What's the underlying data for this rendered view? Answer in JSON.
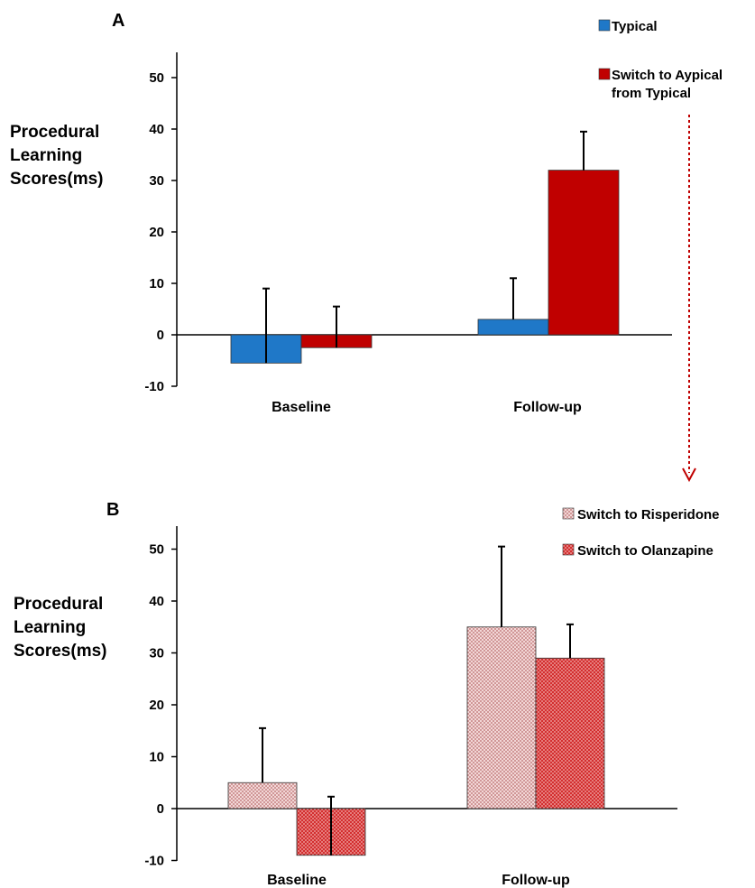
{
  "chart_data": [
    {
      "type": "bar",
      "panel": "A",
      "ylabel_lines": [
        "Procedural",
        "Learning",
        "Scores(ms)"
      ],
      "categories": [
        "Baseline",
        "Follow-up"
      ],
      "ylim": [
        -10,
        50
      ],
      "yticks": [
        -10,
        0,
        10,
        20,
        30,
        40,
        50
      ],
      "legend_position": "top-right",
      "series": [
        {
          "name": "Typical",
          "values": [
            -5.5,
            3
          ],
          "errors": [
            9,
            11
          ],
          "color": "#1f78c8"
        },
        {
          "name": "Switch to Aypical from Typical",
          "name_lines": [
            "Switch to Aypical",
            "from Typical"
          ],
          "values": [
            -2.5,
            32
          ],
          "errors": [
            5.5,
            39.5
          ],
          "color": "#c00000"
        }
      ]
    },
    {
      "type": "bar",
      "panel": "B",
      "ylabel_lines": [
        "Procedural",
        "Learning",
        "Scores(ms)"
      ],
      "categories": [
        "Baseline",
        "Follow-up"
      ],
      "ylim": [
        -10,
        50
      ],
      "yticks": [
        -10,
        0,
        10,
        20,
        30,
        40,
        50
      ],
      "legend_position": "top-right",
      "series": [
        {
          "name": "Switch to Risperidone",
          "values": [
            5,
            35
          ],
          "errors": [
            15.5,
            50.5
          ],
          "color": "#e8b4b4",
          "pattern": "dotted-light"
        },
        {
          "name": "Switch to Olanzapine",
          "values": [
            -9,
            29
          ],
          "errors": [
            2.3,
            35.5
          ],
          "color": "#c62828",
          "pattern": "dotted-dark"
        }
      ]
    }
  ]
}
